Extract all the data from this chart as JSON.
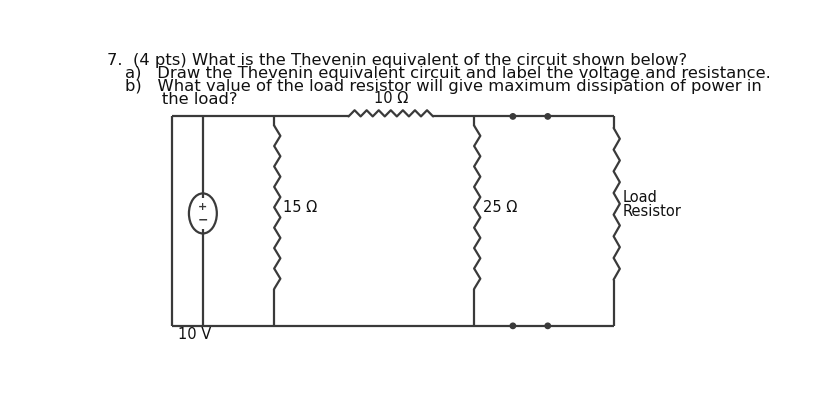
{
  "title_line1": "7.  (4 pts) What is the Thevenin equivalent of the circuit shown below?",
  "title_line2a": "a)   Draw the Thevenin equivalent circuit and label the voltage and resistance.",
  "title_line2b": "b)   What value of the load resistor will give maximum dissipation of power in",
  "title_line2c": "       the load?",
  "background_color": "#ffffff",
  "text_color": "#111111",
  "resistor_10": "10 Ω",
  "resistor_15": "15 Ω",
  "resistor_25": "25 Ω",
  "load_label1": "Load",
  "load_label2": "Resistor",
  "voltage_label": "10 V",
  "wire_color": "#3a3a3a",
  "lw": 1.6
}
